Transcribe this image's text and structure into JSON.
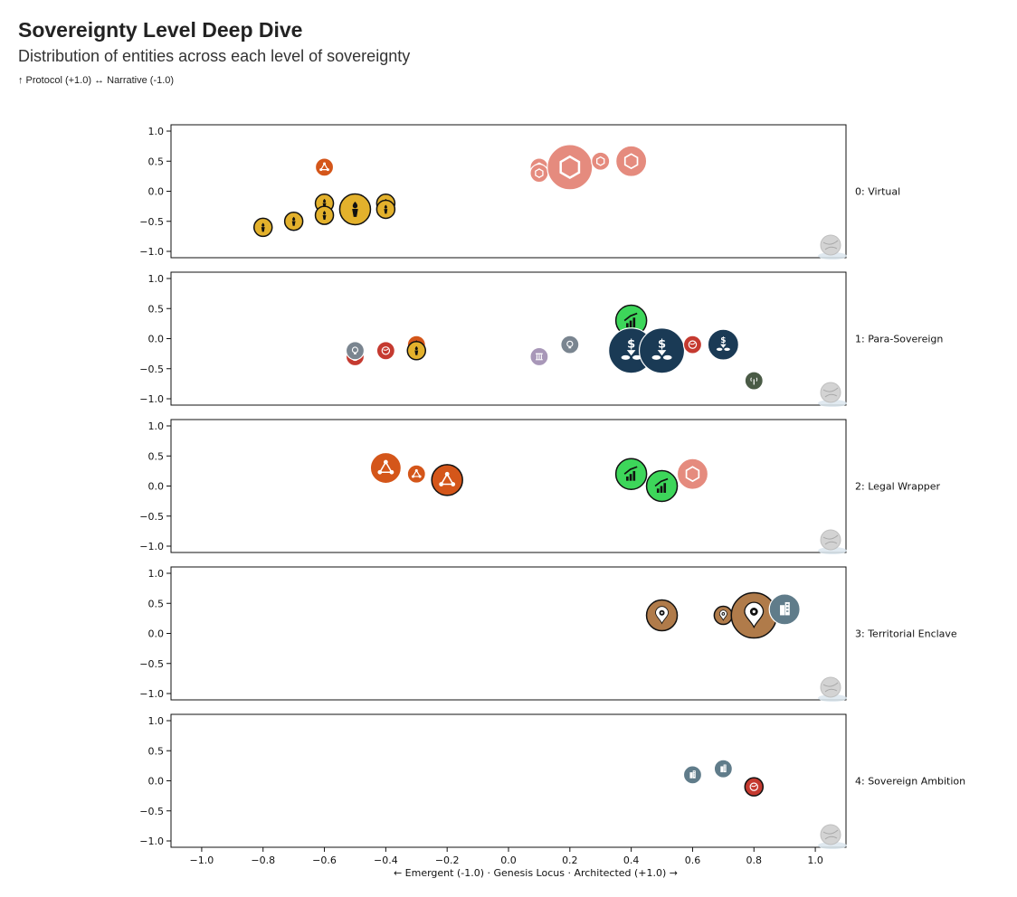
{
  "title": "Sovereignty Level Deep Dive",
  "subtitle": "Distribution of entities across each level of sovereignty",
  "y_axis_note": "↑ Protocol (+1.0) ↔ Narrative (-1.0)",
  "chart_data": {
    "type": "scatter",
    "xlabel": "← Emergent (-1.0) · Genesis Locus · Architected (+1.0) →",
    "xlim": [
      -1.1,
      1.1
    ],
    "ylim": [
      -1.1,
      1.1
    ],
    "x_ticks": [
      "−1.0",
      "−0.8",
      "−0.6",
      "−0.4",
      "−0.2",
      "0.0",
      "0.2",
      "0.4",
      "0.6",
      "0.8",
      "1.0"
    ],
    "y_ticks": [
      "1.0",
      "0.5",
      "0.0",
      "−0.5",
      "−1.0"
    ],
    "grid": false,
    "facet_label_position": "right",
    "colors": {
      "orange": "#d4561a",
      "gold": "#e3b12c",
      "salmon": "#e58b7e",
      "green": "#3dd65a",
      "navy": "#1a3a55",
      "red": "#c53a30",
      "gray": "#7a8590",
      "lavender": "#a897b8",
      "olive": "#4a5b46",
      "tan": "#b07b4a",
      "slate": "#607c8a",
      "globe": "#cccccc"
    },
    "facets": [
      {
        "label": "0: Virtual",
        "points": [
          {
            "x": -0.6,
            "y": 0.4,
            "size": "small",
            "color": "orange",
            "icon": "network-icon",
            "outline": false
          },
          {
            "x": -0.8,
            "y": -0.6,
            "size": "small",
            "color": "gold",
            "icon": "torch-icon",
            "outline": true
          },
          {
            "x": -0.7,
            "y": -0.5,
            "size": "small",
            "color": "gold",
            "icon": "torch-icon",
            "outline": true
          },
          {
            "x": -0.6,
            "y": -0.2,
            "size": "small",
            "color": "gold",
            "icon": "torch-icon",
            "outline": true
          },
          {
            "x": -0.6,
            "y": -0.4,
            "size": "small",
            "color": "gold",
            "icon": "torch-icon",
            "outline": true
          },
          {
            "x": -0.4,
            "y": -0.2,
            "size": "small",
            "color": "gold",
            "icon": "torch-icon",
            "outline": true
          },
          {
            "x": -0.4,
            "y": -0.3,
            "size": "small",
            "color": "gold",
            "icon": "torch-icon",
            "outline": true
          },
          {
            "x": -0.5,
            "y": -0.3,
            "size": "medium",
            "color": "gold",
            "icon": "torch-icon",
            "outline": true
          },
          {
            "x": 0.1,
            "y": 0.4,
            "size": "small",
            "color": "salmon",
            "icon": "hexagon-icon",
            "outline": false
          },
          {
            "x": 0.1,
            "y": 0.3,
            "size": "small",
            "color": "salmon",
            "icon": "hexagon-icon",
            "outline": false
          },
          {
            "x": 0.2,
            "y": 0.4,
            "size": "large",
            "color": "salmon",
            "icon": "hexagon-icon",
            "outline": false
          },
          {
            "x": 0.3,
            "y": 0.5,
            "size": "small",
            "color": "salmon",
            "icon": "hexagon-icon",
            "outline": false
          },
          {
            "x": 0.4,
            "y": 0.5,
            "size": "medium",
            "color": "salmon",
            "icon": "hexagon-icon",
            "outline": false
          }
        ]
      },
      {
        "label": "1: Para-Sovereign",
        "points": [
          {
            "x": -0.5,
            "y": -0.3,
            "size": "small",
            "color": "red",
            "icon": "globe-icon",
            "outline": false
          },
          {
            "x": -0.5,
            "y": -0.2,
            "size": "small",
            "color": "gray",
            "icon": "lightbulb-icon",
            "outline": false
          },
          {
            "x": -0.4,
            "y": -0.2,
            "size": "small",
            "color": "red",
            "icon": "globe-icon",
            "outline": false
          },
          {
            "x": -0.3,
            "y": -0.1,
            "size": "small",
            "color": "orange",
            "icon": "torch-icon",
            "outline": false
          },
          {
            "x": -0.3,
            "y": -0.2,
            "size": "small",
            "color": "gold",
            "icon": "torch-icon",
            "outline": true
          },
          {
            "x": 0.1,
            "y": -0.3,
            "size": "small",
            "color": "lavender",
            "icon": "pillar-icon",
            "outline": false
          },
          {
            "x": 0.2,
            "y": -0.1,
            "size": "small",
            "color": "gray",
            "icon": "lightbulb-icon",
            "outline": false
          },
          {
            "x": 0.4,
            "y": 0.3,
            "size": "medium",
            "color": "green",
            "icon": "growth-chart-icon",
            "outline": true
          },
          {
            "x": 0.4,
            "y": -0.2,
            "size": "large",
            "color": "navy",
            "icon": "money-plant-icon",
            "outline": false
          },
          {
            "x": 0.5,
            "y": -0.2,
            "size": "large",
            "color": "navy",
            "icon": "money-plant-icon",
            "outline": false
          },
          {
            "x": 0.6,
            "y": -0.1,
            "size": "small",
            "color": "red",
            "icon": "globe-icon",
            "outline": false
          },
          {
            "x": 0.7,
            "y": -0.1,
            "size": "medium",
            "color": "navy",
            "icon": "money-plant-icon",
            "outline": false
          },
          {
            "x": 0.8,
            "y": -0.7,
            "size": "small",
            "color": "olive",
            "icon": "antenna-icon",
            "outline": false
          }
        ]
      },
      {
        "label": "2: Legal Wrapper",
        "points": [
          {
            "x": -0.4,
            "y": 0.3,
            "size": "medium",
            "color": "orange",
            "icon": "network-icon",
            "outline": false
          },
          {
            "x": -0.3,
            "y": 0.2,
            "size": "small",
            "color": "orange",
            "icon": "network-icon",
            "outline": false
          },
          {
            "x": -0.2,
            "y": 0.1,
            "size": "medium",
            "color": "orange",
            "icon": "network-icon",
            "outline": true
          },
          {
            "x": 0.4,
            "y": 0.2,
            "size": "medium",
            "color": "green",
            "icon": "growth-chart-icon",
            "outline": true
          },
          {
            "x": 0.5,
            "y": 0.0,
            "size": "medium",
            "color": "green",
            "icon": "growth-chart-icon",
            "outline": true
          },
          {
            "x": 0.6,
            "y": 0.2,
            "size": "medium",
            "color": "salmon",
            "icon": "hexagon-icon",
            "outline": false
          }
        ]
      },
      {
        "label": "3: Territorial Enclave",
        "points": [
          {
            "x": 0.5,
            "y": 0.3,
            "size": "medium",
            "color": "tan",
            "icon": "location-gear-icon",
            "outline": true
          },
          {
            "x": 0.7,
            "y": 0.3,
            "size": "small",
            "color": "tan",
            "icon": "location-pin-icon",
            "outline": true
          },
          {
            "x": 0.8,
            "y": 0.3,
            "size": "large",
            "color": "tan",
            "icon": "location-gear-icon",
            "outline": true
          },
          {
            "x": 0.9,
            "y": 0.4,
            "size": "medium",
            "color": "slate",
            "icon": "building-icon",
            "outline": false
          }
        ]
      },
      {
        "label": "4: Sovereign Ambition",
        "points": [
          {
            "x": 0.6,
            "y": 0.1,
            "size": "small",
            "color": "slate",
            "icon": "building-icon",
            "outline": false
          },
          {
            "x": 0.7,
            "y": 0.2,
            "size": "small",
            "color": "slate",
            "icon": "building-icon",
            "outline": false
          },
          {
            "x": 0.8,
            "y": -0.1,
            "size": "small",
            "color": "red",
            "icon": "globe-icon",
            "outline": true
          }
        ]
      }
    ]
  }
}
